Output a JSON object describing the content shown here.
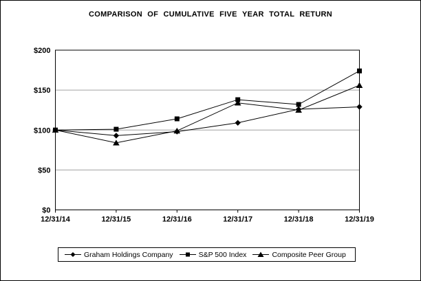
{
  "chart_data": {
    "type": "line",
    "title": "COMPARISON OF CUMULATIVE FIVE YEAR TOTAL RETURN",
    "x_categories": [
      "12/31/14",
      "12/31/15",
      "12/31/16",
      "12/31/17",
      "12/31/18",
      "12/31/19"
    ],
    "y_tick_labels": [
      "$0",
      "$50",
      "$100",
      "$150",
      "$200"
    ],
    "y_tick_values": [
      0,
      50,
      100,
      150,
      200
    ],
    "ylim": [
      0,
      200
    ],
    "grid": "horizontal gray gridlines at $50 intervals",
    "legend_position": "bottom",
    "series": [
      {
        "name": "Graham Holdings Company",
        "marker": "diamond",
        "values": [
          100,
          93,
          98,
          109,
          126,
          129
        ]
      },
      {
        "name": "S&P 500 Index",
        "marker": "square",
        "values": [
          100,
          101,
          114,
          138,
          132,
          174
        ]
      },
      {
        "name": "Composite Peer Group",
        "marker": "triangle",
        "values": [
          100,
          84,
          99,
          134,
          125,
          156
        ]
      }
    ],
    "colors": {
      "series_line": "#000000",
      "marker_fill": "#000000",
      "gridline": "#a0a0a0",
      "plot_border": "#000000",
      "background": "#ffffff",
      "text": "#000000"
    }
  }
}
